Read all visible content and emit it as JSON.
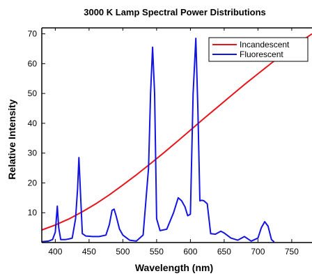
{
  "chart_data": {
    "type": "line",
    "title": "3000 K Lamp Spectral Power Distributions",
    "xlabel": "Wavelength (nm)",
    "ylabel": "Relative Intensity",
    "xlim": [
      380,
      780
    ],
    "ylim": [
      0,
      72
    ],
    "xticks": [
      400,
      450,
      500,
      550,
      600,
      650,
      700,
      750
    ],
    "yticks": [
      10,
      20,
      30,
      40,
      50,
      60,
      70
    ],
    "grid": false,
    "legend_position": "top-right",
    "series": [
      {
        "name": "Incandescent",
        "color": "#e8141b",
        "x": [
          380,
          400,
          420,
          440,
          460,
          480,
          500,
          520,
          540,
          560,
          580,
          600,
          620,
          640,
          660,
          680,
          700,
          720,
          740,
          760,
          780
        ],
        "y": [
          4.2,
          5.9,
          7.9,
          10.3,
          13.0,
          16.0,
          19.3,
          22.7,
          26.3,
          30.0,
          33.8,
          37.7,
          41.6,
          45.4,
          49.2,
          53.0,
          56.6,
          60.2,
          63.6,
          66.9,
          70.0
        ]
      },
      {
        "name": "Fluorescent",
        "color": "#1414e0",
        "x": [
          380,
          390,
          396,
          400,
          403,
          405,
          408,
          415,
          420,
          425,
          430,
          433,
          435,
          437,
          440,
          445,
          455,
          465,
          475,
          480,
          484,
          487,
          490,
          495,
          500,
          510,
          520,
          530,
          538,
          541,
          544,
          547,
          550,
          555,
          565,
          575,
          582,
          587,
          592,
          596,
          600,
          604,
          608,
          611,
          614,
          617,
          620,
          625,
          630,
          637,
          645,
          650,
          660,
          670,
          680,
          690,
          700,
          705,
          710,
          715,
          720,
          724
        ],
        "y": [
          0.3,
          0.5,
          1.0,
          3.5,
          12.2,
          5.0,
          1.0,
          1.0,
          1.2,
          1.5,
          8.0,
          18.0,
          28.5,
          18.0,
          3.0,
          2.2,
          2.0,
          2.0,
          2.5,
          6.0,
          10.8,
          11.2,
          9.0,
          4.5,
          2.5,
          0.8,
          0.5,
          2.5,
          25.0,
          50.0,
          65.5,
          50.0,
          8.0,
          4.0,
          4.5,
          10.0,
          15.0,
          14.0,
          12.0,
          9.0,
          9.5,
          50.0,
          68.5,
          45.0,
          14.0,
          14.2,
          14.0,
          13.0,
          3.0,
          2.8,
          3.8,
          3.2,
          1.5,
          0.8,
          2.0,
          0.5,
          1.5,
          5.0,
          7.0,
          5.5,
          1.0,
          0.2
        ]
      }
    ]
  }
}
